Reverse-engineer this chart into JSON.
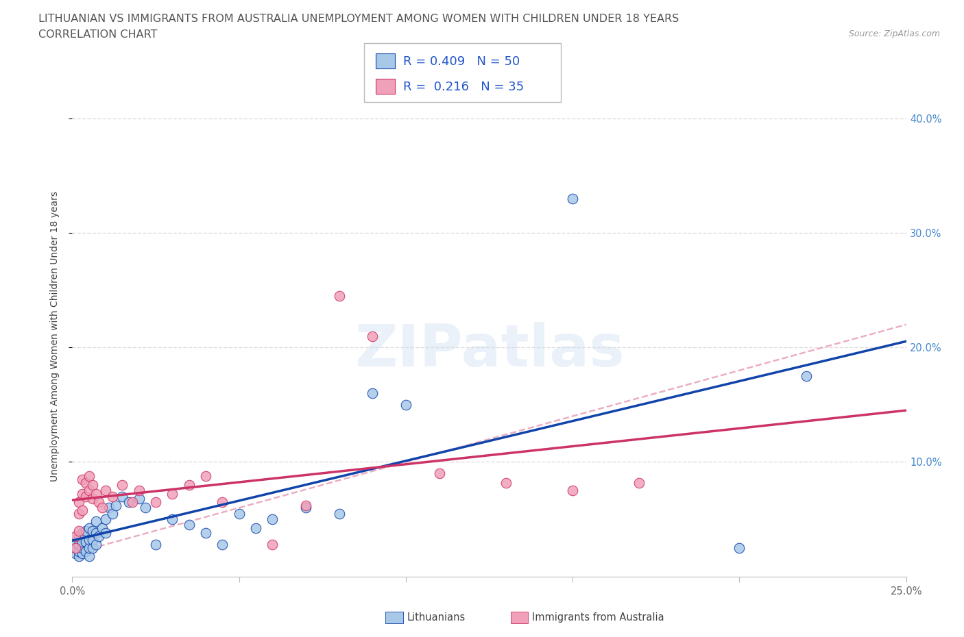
{
  "title_line1": "LITHUANIAN VS IMMIGRANTS FROM AUSTRALIA UNEMPLOYMENT AMONG WOMEN WITH CHILDREN UNDER 18 YEARS",
  "title_line2": "CORRELATION CHART",
  "source_text": "Source: ZipAtlas.com",
  "watermark_text": "ZIPatlas",
  "legend_label1": "Lithuanians",
  "legend_label2": "Immigrants from Australia",
  "color_blue": "#A8C8E8",
  "color_pink": "#F0A0B8",
  "color_trendline_blue": "#1144AA",
  "color_trendline_pink": "#CC3366",
  "color_trendline_dashed": "#E8A0B8",
  "color_legend_text": "#2255CC",
  "color_title": "#555555",
  "color_source": "#999999",
  "color_ylabel": "#444444",
  "color_ytick_right": "#4488CC",
  "color_grid": "#DDDDDD",
  "color_bg": "#FFFFFF",
  "xlim": [
    0.0,
    0.25
  ],
  "ylim": [
    0.0,
    0.42
  ],
  "blue_x": [
    0.001,
    0.001,
    0.001,
    0.002,
    0.002,
    0.002,
    0.002,
    0.003,
    0.003,
    0.003,
    0.003,
    0.004,
    0.004,
    0.004,
    0.005,
    0.005,
    0.005,
    0.005,
    0.006,
    0.006,
    0.006,
    0.007,
    0.007,
    0.007,
    0.008,
    0.009,
    0.01,
    0.01,
    0.011,
    0.012,
    0.013,
    0.015,
    0.017,
    0.02,
    0.022,
    0.025,
    0.03,
    0.035,
    0.04,
    0.045,
    0.05,
    0.055,
    0.06,
    0.07,
    0.08,
    0.09,
    0.1,
    0.15,
    0.2,
    0.22
  ],
  "blue_y": [
    0.02,
    0.025,
    0.03,
    0.018,
    0.022,
    0.028,
    0.035,
    0.02,
    0.025,
    0.03,
    0.038,
    0.022,
    0.03,
    0.04,
    0.018,
    0.025,
    0.032,
    0.042,
    0.025,
    0.032,
    0.04,
    0.028,
    0.038,
    0.048,
    0.035,
    0.042,
    0.038,
    0.05,
    0.06,
    0.055,
    0.062,
    0.07,
    0.065,
    0.068,
    0.06,
    0.028,
    0.05,
    0.045,
    0.038,
    0.028,
    0.055,
    0.042,
    0.05,
    0.06,
    0.055,
    0.16,
    0.15,
    0.33,
    0.025,
    0.175
  ],
  "pink_x": [
    0.001,
    0.001,
    0.002,
    0.002,
    0.002,
    0.003,
    0.003,
    0.003,
    0.004,
    0.004,
    0.005,
    0.005,
    0.006,
    0.006,
    0.007,
    0.008,
    0.009,
    0.01,
    0.012,
    0.015,
    0.018,
    0.02,
    0.025,
    0.03,
    0.035,
    0.04,
    0.045,
    0.06,
    0.07,
    0.08,
    0.09,
    0.11,
    0.13,
    0.15,
    0.17
  ],
  "pink_y": [
    0.025,
    0.035,
    0.04,
    0.055,
    0.065,
    0.058,
    0.072,
    0.085,
    0.07,
    0.082,
    0.075,
    0.088,
    0.068,
    0.08,
    0.072,
    0.065,
    0.06,
    0.075,
    0.07,
    0.08,
    0.065,
    0.075,
    0.065,
    0.072,
    0.08,
    0.088,
    0.065,
    0.028,
    0.062,
    0.245,
    0.21,
    0.09,
    0.082,
    0.075,
    0.082
  ],
  "ylabel_text": "Unemployment Among Women with Children Under 18 years",
  "y_ticks": [
    0.1,
    0.2,
    0.3,
    0.4
  ],
  "y_tick_labels": [
    "10.0%",
    "20.0%",
    "30.0%",
    "40.0%"
  ],
  "x_ticks": [
    0.0,
    0.05,
    0.1,
    0.15,
    0.2,
    0.25
  ],
  "x_tick_labels": [
    "0.0%",
    "",
    "",
    "",
    "",
    "25.0%"
  ],
  "title_fontsize": 11.5,
  "tick_fontsize": 10.5,
  "legend_fontsize": 13,
  "ylabel_fontsize": 10,
  "source_fontsize": 9
}
